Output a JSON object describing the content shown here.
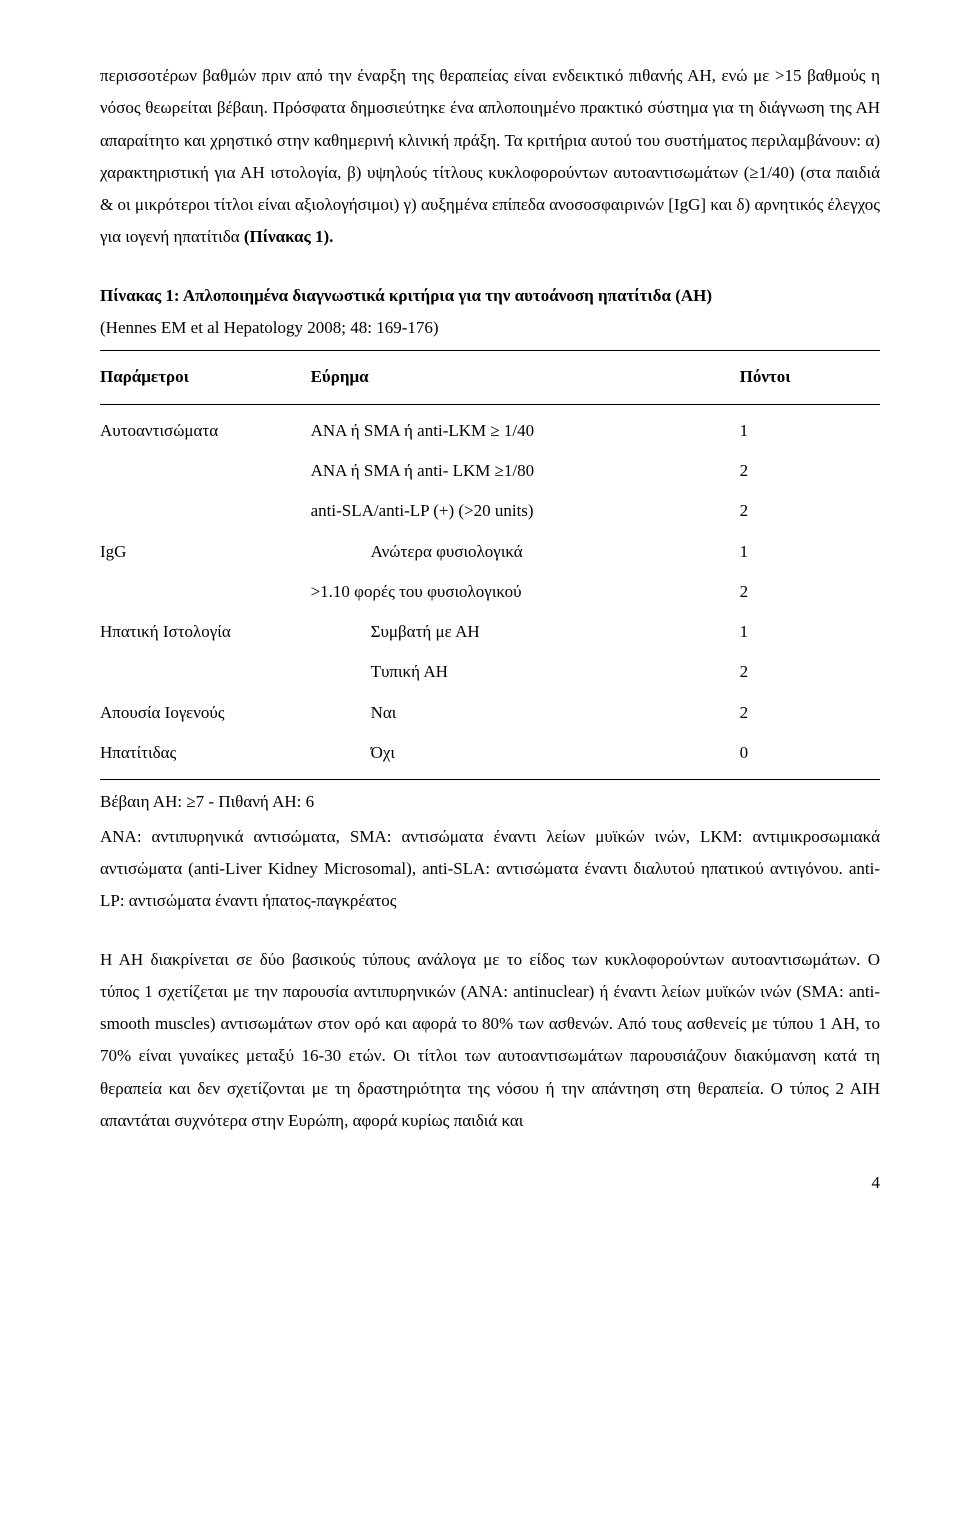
{
  "para1": "περισσοτέρων βαθμών πριν από την  έναρξη της  θεραπείας είναι ενδεικτικό πιθανής ΑΗ, ενώ με >15 βαθμούς η νόσος  θεωρείται βέβαιη. Πρόσφατα δημοσιεύτηκε ένα απλοποιημένο πρακτικό σύστημα  για τη διάγνωση της ΑΗ απαραίτητο και χρηστικό  στην  καθημερινή κλινική πράξη. Τα κριτήρια αυτού του συστήματος περιλαμβάνουν: α) χαρακτηριστική για ΑΗ ιστολογία, β) υψηλούς τίτλους κυκλοφορούντων αυτοαντισωμάτων (≥1/40) (στα παιδιά & οι μικρότεροι τίτλοι είναι αξιολογήσιμοι) γ) αυξημένα επίπεδα ανοσοσφαιρινών [IgG] και δ) αρνητικός έλεγχος για ιογενή  ηπατίτιδα ",
  "para1_bold": "(Πίνακας 1).",
  "tableTitleBold": "Πίνακας 1: Απλοποιημένα διαγνωστικά κριτήρια για την αυτοάνοση ηπατίτιδα (ΑΗ)",
  "tableTitleRef": "(Hennes EM et al Hepatology 2008; 48: 169-176)",
  "headers": {
    "c1": "Παράμετροι",
    "c2": "Εύρημα",
    "c3": "Πόντοι"
  },
  "rows": [
    {
      "p": "Αυτοαντισώματα",
      "f": "ANA ή SMA ή anti-LKM ≥ 1/40",
      "pts": "1",
      "indent": false
    },
    {
      "p": "",
      "f": "ANA ή SMA ή anti- LKM ≥1/80",
      "pts": "2",
      "indent": false
    },
    {
      "p": "",
      "f": "anti-SLA/anti-LP (+) (>20 units)",
      "pts": "2",
      "indent": false
    },
    {
      "p": "IgG",
      "f": "Ανώτερα φυσιολογικά",
      "pts": "1",
      "indent": true
    },
    {
      "p": "",
      "f": ">1.10 φορές του φυσιολογικού",
      "pts": "2",
      "indent": false
    },
    {
      "p": "Ηπατική Ιστολογία",
      "f": "Συμβατή με ΑΗ",
      "pts": "1",
      "indent": true
    },
    {
      "p": "",
      "f": "Τυπική ΑΗ",
      "pts": "2",
      "indent": true
    },
    {
      "p": "Απουσία Ιογενούς",
      "f": "Ναι",
      "pts": "2",
      "indent": true
    },
    {
      "p": "Ηπατίτιδας",
      "f": "Όχι",
      "pts": "0",
      "indent": true
    }
  ],
  "tableFoot1": "Βέβαιη ΑΗ: ≥7 - Πιθανή ΑΗ: 6",
  "tableFoot2": "ΑΝΑ: αντιπυρηνικά αντισώματα, SMA: αντισώματα έναντι λείων μυϊκών ινών, LKM: αντιμικροσωμιακά αντισώματα (anti-Liver Kidney Microsomal), anti-SLA: αντισώματα έναντι διαλυτού ηπατικού αντιγόνου. anti-LP: αντισώματα έναντι ήπατος-παγκρέατος",
  "para2": "Η ΑΗ διακρίνεται σε δύο βασικούς τύπους ανάλογα με  το είδος των κυκλοφορούντων αυτοαντισωμάτων. Ο τύπος 1 σχετίζεται με την παρουσία αντιπυρηνικών (ΑΝΑ: antinuclear) ή έναντι λείων μυϊκών ινών (SMA: anti-smooth muscles) αντισωμάτων στον ορό και αφορά το 80% των ασθενών. Από τους ασθενείς με τύπου 1 ΑΗ, το 70% είναι γυναίκες μεταξύ 16-30 ετών. Οι τίτλοι των αυτοαντισωμάτων παρουσιάζουν διακύμανση κατά τη θεραπεία και δεν σχετίζονται με τη δραστηριότητα της νόσου ή την απάντηση στη θεραπεία. Ο τύπος 2 ΑΙΗ απαντάται συχνότερα στην Ευρώπη, αφορά κυρίως παιδιά και",
  "pageNumber": "4"
}
